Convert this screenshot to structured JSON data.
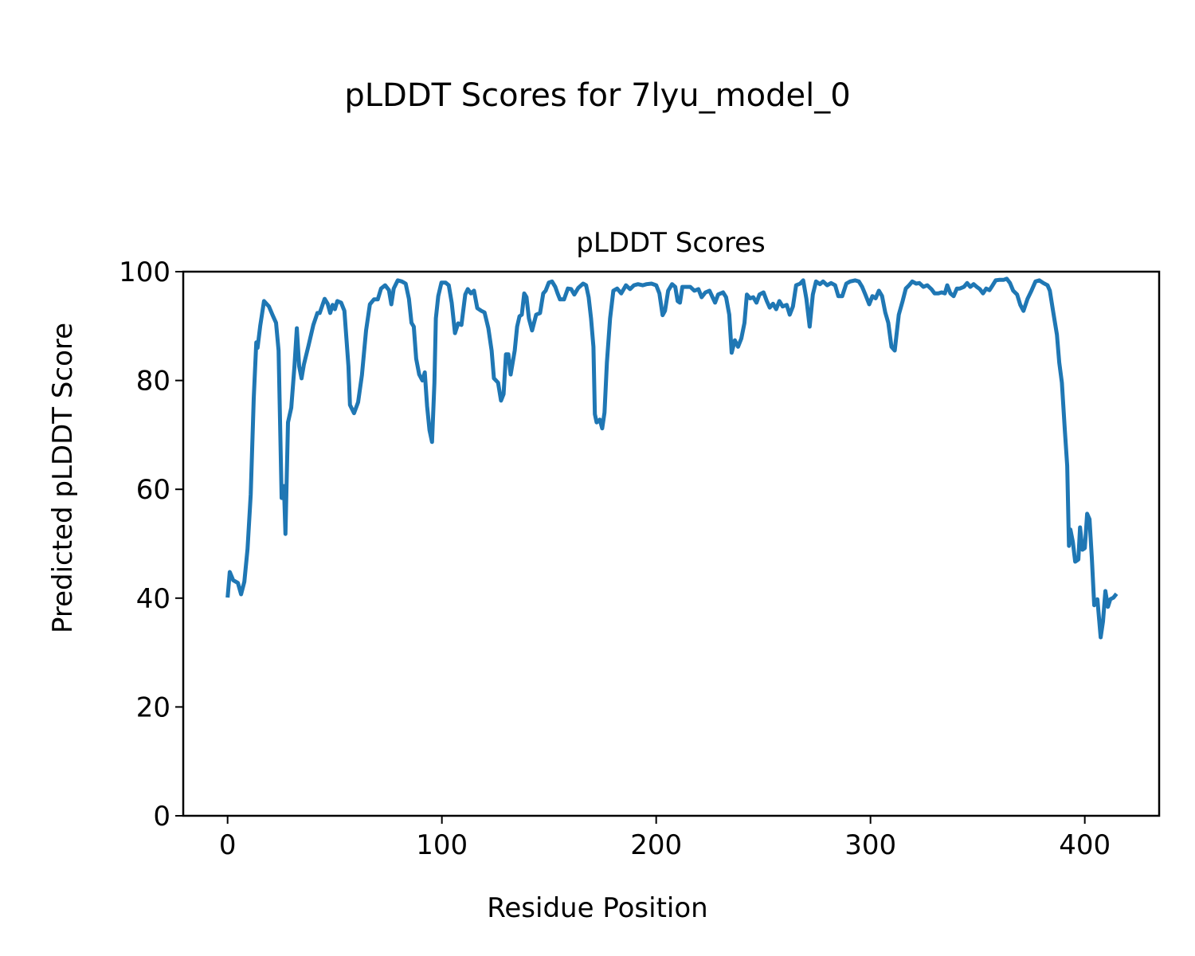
{
  "chart_data": {
    "type": "line",
    "suptitle": "pLDDT Scores for 7lyu_model_0",
    "title": "pLDDT Scores",
    "xlabel": "Residue Position",
    "ylabel": "Predicted pLDDT Score",
    "xlim": [
      -20.7,
      434.7
    ],
    "ylim": [
      0,
      100
    ],
    "xticks": [
      0,
      100,
      200,
      300,
      400
    ],
    "yticks": [
      0,
      20,
      40,
      60,
      80,
      100
    ],
    "grid": false,
    "color": "#1f77b4",
    "series": [
      {
        "name": "pLDDT",
        "points": [
          [
            0,
            40.1
          ],
          [
            1,
            44.8
          ],
          [
            2.6,
            43.3
          ],
          [
            4.8,
            42.8
          ],
          [
            6.3,
            40.7
          ],
          [
            7.8,
            43
          ],
          [
            9.3,
            49
          ],
          [
            10.8,
            59
          ],
          [
            12.2,
            76.7
          ],
          [
            13.4,
            87
          ],
          [
            14,
            86
          ],
          [
            15.2,
            90
          ],
          [
            17,
            94.6
          ],
          [
            19.3,
            93.6
          ],
          [
            21,
            92
          ],
          [
            22.6,
            90.6
          ],
          [
            23.8,
            85.5
          ],
          [
            25.2,
            58.4
          ],
          [
            26.3,
            60.6
          ],
          [
            27,
            51.8
          ],
          [
            28.2,
            72.3
          ],
          [
            29.7,
            75
          ],
          [
            31.2,
            82.6
          ],
          [
            32.3,
            89.6
          ],
          [
            33.4,
            82.6
          ],
          [
            34.5,
            80.4
          ],
          [
            35.6,
            82.9
          ],
          [
            37.8,
            86.5
          ],
          [
            40,
            90.2
          ],
          [
            41.9,
            92.4
          ],
          [
            43,
            92.4
          ],
          [
            45.3,
            95
          ],
          [
            46.7,
            94.1
          ],
          [
            47.9,
            92.4
          ],
          [
            49,
            93.9
          ],
          [
            50.1,
            93.1
          ],
          [
            51.2,
            94.6
          ],
          [
            53,
            94.3
          ],
          [
            54.5,
            92.8
          ],
          [
            56.4,
            82.6
          ],
          [
            57.1,
            75.5
          ],
          [
            59,
            74
          ],
          [
            60.9,
            76
          ],
          [
            62.7,
            81
          ],
          [
            64.6,
            89.2
          ],
          [
            66.4,
            94
          ],
          [
            68.3,
            94.9
          ],
          [
            70.1,
            94.9
          ],
          [
            71.6,
            96.9
          ],
          [
            73.5,
            97.5
          ],
          [
            75.3,
            96.6
          ],
          [
            76.4,
            94
          ],
          [
            77.5,
            96.9
          ],
          [
            79.4,
            98.4
          ],
          [
            81.3,
            98.2
          ],
          [
            83.1,
            97.8
          ],
          [
            84.6,
            95
          ],
          [
            85.8,
            90.6
          ],
          [
            86.9,
            89.9
          ],
          [
            88,
            84
          ],
          [
            89.4,
            81.1
          ],
          [
            90.9,
            80
          ],
          [
            92,
            81.5
          ],
          [
            93.1,
            75.3
          ],
          [
            94.2,
            70.9
          ],
          [
            95.4,
            68.7
          ],
          [
            96.5,
            79.6
          ],
          [
            97.2,
            91.4
          ],
          [
            98.3,
            95.5
          ],
          [
            99.8,
            98
          ],
          [
            101.7,
            98
          ],
          [
            103.2,
            97.5
          ],
          [
            104.6,
            94.3
          ],
          [
            106.1,
            88.7
          ],
          [
            107.6,
            90.5
          ],
          [
            109.1,
            90.2
          ],
          [
            110.9,
            95.8
          ],
          [
            112.1,
            96.8
          ],
          [
            113.5,
            96
          ],
          [
            115,
            96.5
          ],
          [
            116.5,
            93.3
          ],
          [
            118.4,
            92.8
          ],
          [
            119.9,
            92.5
          ],
          [
            121.7,
            89.6
          ],
          [
            123.2,
            85.5
          ],
          [
            124.3,
            80.4
          ],
          [
            126.2,
            79.6
          ],
          [
            127.6,
            76.3
          ],
          [
            128.8,
            77.5
          ],
          [
            129.9,
            84.8
          ],
          [
            131,
            84.8
          ],
          [
            132.1,
            81.1
          ],
          [
            134,
            85.5
          ],
          [
            135.1,
            89.9
          ],
          [
            136.2,
            91.8
          ],
          [
            137.3,
            92.1
          ],
          [
            138.4,
            96
          ],
          [
            139.5,
            95.3
          ],
          [
            140.6,
            91.4
          ],
          [
            142.1,
            89.2
          ],
          [
            144,
            92.1
          ],
          [
            145.8,
            92.4
          ],
          [
            147.3,
            96
          ],
          [
            148.4,
            96.5
          ],
          [
            149.9,
            98
          ],
          [
            151.4,
            98.2
          ],
          [
            152.9,
            97.2
          ],
          [
            154,
            96
          ],
          [
            155.1,
            94.9
          ],
          [
            157,
            94.9
          ],
          [
            158.8,
            96.9
          ],
          [
            160.3,
            96.8
          ],
          [
            161.8,
            95.8
          ],
          [
            163.6,
            97
          ],
          [
            165.9,
            97.8
          ],
          [
            167.3,
            97.5
          ],
          [
            168.5,
            95.3
          ],
          [
            169.6,
            91.4
          ],
          [
            170.7,
            86.2
          ],
          [
            171.4,
            73.8
          ],
          [
            172.2,
            72.3
          ],
          [
            173.7,
            72.8
          ],
          [
            174.8,
            71.2
          ],
          [
            175.9,
            74.1
          ],
          [
            177,
            83.3
          ],
          [
            178.5,
            91.4
          ],
          [
            180,
            96.5
          ],
          [
            181.8,
            96.9
          ],
          [
            183.7,
            96
          ],
          [
            185.9,
            97.5
          ],
          [
            187.8,
            96.8
          ],
          [
            189.6,
            97.5
          ],
          [
            191.5,
            97.7
          ],
          [
            193.7,
            97.5
          ],
          [
            195.5,
            97.7
          ],
          [
            197.8,
            97.8
          ],
          [
            200,
            97.5
          ],
          [
            201.5,
            96
          ],
          [
            203,
            92
          ],
          [
            204.1,
            92.8
          ],
          [
            205.6,
            96.5
          ],
          [
            207.4,
            97.7
          ],
          [
            208.9,
            97.2
          ],
          [
            210,
            94.6
          ],
          [
            211.1,
            94.3
          ],
          [
            212.2,
            97.2
          ],
          [
            214.1,
            97.2
          ],
          [
            215.9,
            97.2
          ],
          [
            217.8,
            96.5
          ],
          [
            219.7,
            96.8
          ],
          [
            221.2,
            95.3
          ],
          [
            223,
            96.2
          ],
          [
            224.9,
            96.5
          ],
          [
            226.3,
            95.3
          ],
          [
            227.5,
            94.3
          ],
          [
            228.9,
            95.8
          ],
          [
            231.2,
            96.2
          ],
          [
            232.6,
            95.3
          ],
          [
            234.1,
            92.1
          ],
          [
            235.2,
            85.1
          ],
          [
            236.7,
            87.4
          ],
          [
            238.2,
            86.2
          ],
          [
            239.7,
            87.7
          ],
          [
            241.2,
            90.6
          ],
          [
            242.3,
            95.8
          ],
          [
            243.8,
            95.1
          ],
          [
            245.3,
            95.3
          ],
          [
            246.8,
            94.3
          ],
          [
            248.2,
            95.8
          ],
          [
            250.1,
            96.2
          ],
          [
            251.6,
            94.6
          ],
          [
            253,
            93.4
          ],
          [
            254.5,
            94.1
          ],
          [
            256,
            93.1
          ],
          [
            257.5,
            94.6
          ],
          [
            259,
            93.6
          ],
          [
            260.9,
            93.9
          ],
          [
            262.3,
            92.1
          ],
          [
            263.8,
            93.6
          ],
          [
            265.3,
            97.5
          ],
          [
            267.2,
            97.8
          ],
          [
            268.6,
            98.4
          ],
          [
            270.1,
            95
          ],
          [
            271.6,
            89.9
          ],
          [
            273.1,
            95.8
          ],
          [
            274.6,
            98.2
          ],
          [
            276.4,
            97.7
          ],
          [
            277.9,
            98.2
          ],
          [
            279.8,
            97.5
          ],
          [
            281.6,
            97.9
          ],
          [
            283.5,
            97.5
          ],
          [
            285,
            95.5
          ],
          [
            286.8,
            95.5
          ],
          [
            288.7,
            97.8
          ],
          [
            290.5,
            98.2
          ],
          [
            292.8,
            98.4
          ],
          [
            294.6,
            98.2
          ],
          [
            296.1,
            97.2
          ],
          [
            297.6,
            95.8
          ],
          [
            299.4,
            94
          ],
          [
            300.9,
            95.5
          ],
          [
            302.4,
            95.1
          ],
          [
            303.9,
            96.5
          ],
          [
            305.4,
            95.5
          ],
          [
            306.9,
            92.5
          ],
          [
            308.3,
            90.6
          ],
          [
            309.8,
            86.2
          ],
          [
            311.3,
            85.5
          ],
          [
            313.2,
            92.1
          ],
          [
            315,
            94.6
          ],
          [
            316.5,
            96.9
          ],
          [
            318,
            97.5
          ],
          [
            319.5,
            98.2
          ],
          [
            321.3,
            97.8
          ],
          [
            322.8,
            97.9
          ],
          [
            324.7,
            97.2
          ],
          [
            326.5,
            97.5
          ],
          [
            328.4,
            96.8
          ],
          [
            329.9,
            96
          ],
          [
            331.7,
            96
          ],
          [
            333.2,
            96.2
          ],
          [
            334.7,
            96
          ],
          [
            335.8,
            97.5
          ],
          [
            337.3,
            96
          ],
          [
            338.8,
            95.5
          ],
          [
            340.3,
            96.9
          ],
          [
            341.7,
            96.9
          ],
          [
            343.6,
            97.2
          ],
          [
            345.1,
            97.9
          ],
          [
            346.6,
            97.2
          ],
          [
            348.1,
            97.7
          ],
          [
            349.6,
            97.2
          ],
          [
            351,
            96.8
          ],
          [
            352.5,
            96
          ],
          [
            354,
            96.9
          ],
          [
            355.5,
            96.6
          ],
          [
            357,
            97.5
          ],
          [
            358.4,
            98.4
          ],
          [
            360.3,
            98.5
          ],
          [
            362.2,
            98.5
          ],
          [
            363.6,
            98.7
          ],
          [
            365.1,
            97.9
          ],
          [
            366.6,
            96.5
          ],
          [
            368.4,
            95.8
          ],
          [
            369.9,
            93.9
          ],
          [
            371.4,
            92.8
          ],
          [
            373.3,
            95
          ],
          [
            375.1,
            96.5
          ],
          [
            377,
            98.2
          ],
          [
            378.8,
            98.4
          ],
          [
            380.7,
            97.9
          ],
          [
            382.6,
            97.5
          ],
          [
            383.7,
            96.5
          ],
          [
            385.2,
            92.8
          ],
          [
            387,
            88.4
          ],
          [
            388.1,
            83.3
          ],
          [
            389.3,
            79.6
          ],
          [
            390.7,
            70.9
          ],
          [
            391.8,
            64.3
          ],
          [
            392.6,
            49.6
          ],
          [
            393.3,
            52.6
          ],
          [
            394.4,
            50.4
          ],
          [
            395.5,
            46.7
          ],
          [
            397,
            47.1
          ],
          [
            397.8,
            53
          ],
          [
            398.9,
            48.9
          ],
          [
            400,
            49.2
          ],
          [
            401.1,
            55.5
          ],
          [
            402.2,
            54.5
          ],
          [
            403.3,
            47.4
          ],
          [
            404.4,
            38.7
          ],
          [
            405.9,
            39.8
          ],
          [
            407.4,
            32.8
          ],
          [
            408.5,
            35.7
          ],
          [
            409.6,
            41.3
          ],
          [
            410.8,
            38.4
          ],
          [
            411.9,
            39.8
          ],
          [
            413.4,
            40.1
          ],
          [
            414.8,
            40.8
          ]
        ]
      }
    ]
  }
}
